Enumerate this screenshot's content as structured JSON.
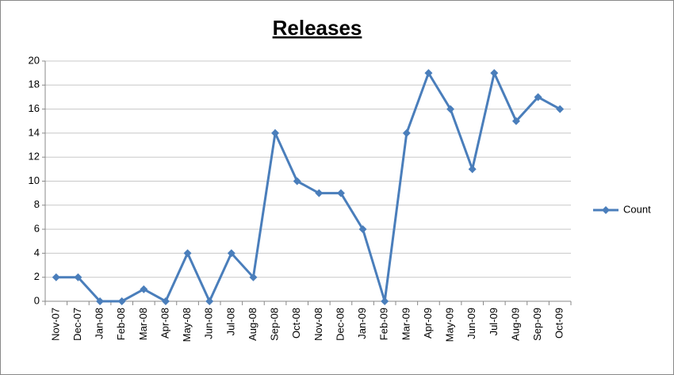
{
  "chart_data": {
    "type": "line",
    "title": "Releases",
    "categories": [
      "Nov-07",
      "Dec-07",
      "Jan-08",
      "Feb-08",
      "Mar-08",
      "Apr-08",
      "May-08",
      "Jun-08",
      "Jul-08",
      "Aug-08",
      "Sep-08",
      "Oct-08",
      "Nov-08",
      "Dec-08",
      "Jan-09",
      "Feb-09",
      "Mar-09",
      "Apr-09",
      "May-09",
      "Jun-09",
      "Jul-09",
      "Aug-09",
      "Sep-09",
      "Oct-09"
    ],
    "series": [
      {
        "name": "Count",
        "color": "#4a7ebb",
        "values": [
          2,
          2,
          0,
          0,
          1,
          0,
          4,
          0,
          4,
          2,
          14,
          10,
          9,
          9,
          6,
          0,
          14,
          19,
          16,
          11,
          19,
          15,
          17,
          16
        ]
      }
    ],
    "ylim": [
      0,
      20
    ],
    "yticks": [
      0,
      2,
      4,
      6,
      8,
      10,
      12,
      14,
      16,
      18,
      20
    ],
    "grid": true,
    "legend": "right"
  }
}
